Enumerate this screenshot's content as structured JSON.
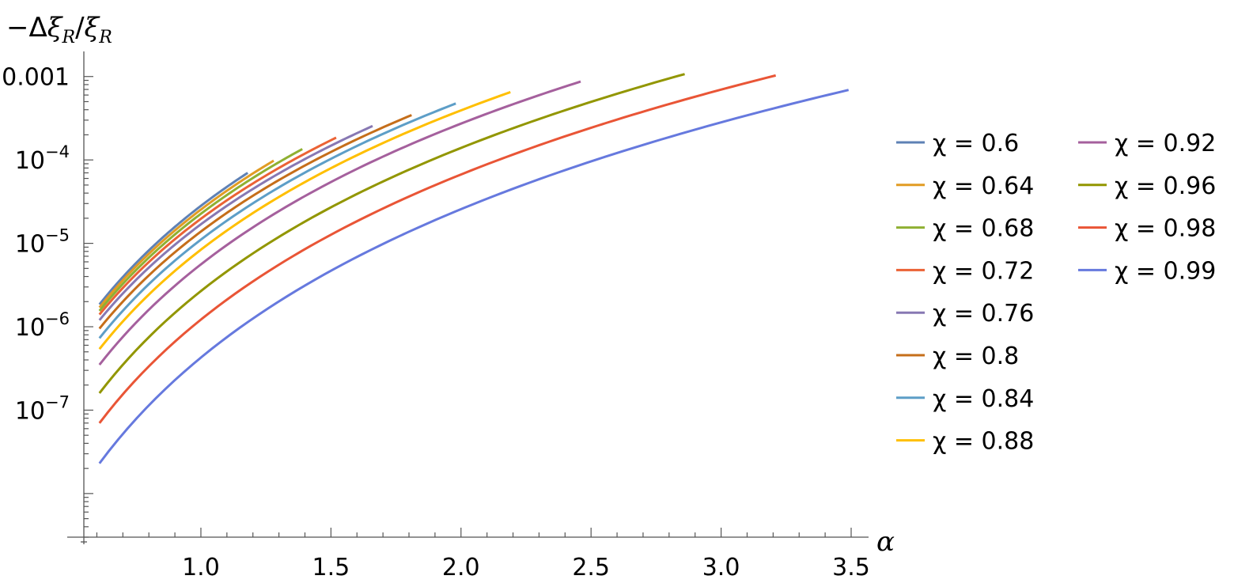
{
  "chart_data": {
    "type": "line",
    "title": "",
    "xlabel": "α",
    "ylabel": "−Δξ_R/ξ_R",
    "y_scale": "log",
    "xlim": [
      0.55,
      3.5
    ],
    "ylim": [
      3e-09,
      0.002
    ],
    "x_ticks": [
      1.0,
      1.5,
      2.0,
      2.5,
      3.0,
      3.5
    ],
    "x_tick_labels": [
      "1.0",
      "1.5",
      "2.0",
      "2.5",
      "3.0",
      "3.5"
    ],
    "y_ticks": [
      {
        "value": 0.001,
        "base": "0.001",
        "exp": ""
      },
      {
        "value": 0.0001,
        "base": "10",
        "exp": "−4"
      },
      {
        "value": 1e-05,
        "base": "10",
        "exp": "−5"
      },
      {
        "value": 1e-06,
        "base": "10",
        "exp": "−6"
      },
      {
        "value": 1e-07,
        "base": "10",
        "exp": "−7"
      }
    ],
    "grid": false,
    "legend_position": "right",
    "series": [
      {
        "name": "χ = 0.6",
        "color": "#5E81B5",
        "x_start": 0.61,
        "x_end": 1.18,
        "y_start": 1.85e-06,
        "y_end": 7e-05
      },
      {
        "name": "χ = 0.64",
        "color": "#E19C24",
        "x_start": 0.61,
        "x_end": 1.28,
        "y_start": 1.7e-06,
        "y_end": 9.8e-05
      },
      {
        "name": "χ = 0.68",
        "color": "#8FB032",
        "x_start": 0.61,
        "x_end": 1.39,
        "y_start": 1.55e-06,
        "y_end": 0.000135
      },
      {
        "name": "χ = 0.72",
        "color": "#EB6235",
        "x_start": 0.61,
        "x_end": 1.52,
        "y_start": 1.4e-06,
        "y_end": 0.000185
      },
      {
        "name": "χ = 0.76",
        "color": "#8778B3",
        "x_start": 0.61,
        "x_end": 1.66,
        "y_start": 1.2e-06,
        "y_end": 0.000255
      },
      {
        "name": "χ = 0.8",
        "color": "#C56E1A",
        "x_start": 0.61,
        "x_end": 1.81,
        "y_start": 9.5e-07,
        "y_end": 0.000345
      },
      {
        "name": "χ = 0.84",
        "color": "#5D9EC7",
        "x_start": 0.61,
        "x_end": 1.98,
        "y_start": 7.3e-07,
        "y_end": 0.000475
      },
      {
        "name": "χ = 0.88",
        "color": "#FFBF00",
        "x_start": 0.61,
        "x_end": 2.19,
        "y_start": 5.4e-07,
        "y_end": 0.00065
      },
      {
        "name": "χ = 0.92",
        "color": "#A5609D",
        "x_start": 0.61,
        "x_end": 2.46,
        "y_start": 3.5e-07,
        "y_end": 0.00087
      },
      {
        "name": "χ = 0.96",
        "color": "#929600",
        "x_start": 0.61,
        "x_end": 2.86,
        "y_start": 1.6e-07,
        "y_end": 0.00107
      },
      {
        "name": "χ = 0.98",
        "color": "#E95536",
        "x_start": 0.61,
        "x_end": 3.21,
        "y_start": 7e-08,
        "y_end": 0.00103
      },
      {
        "name": "χ = 0.99",
        "color": "#6679DE",
        "x_start": 0.61,
        "x_end": 3.49,
        "y_start": 2.3e-08,
        "y_end": 0.00069
      }
    ]
  }
}
